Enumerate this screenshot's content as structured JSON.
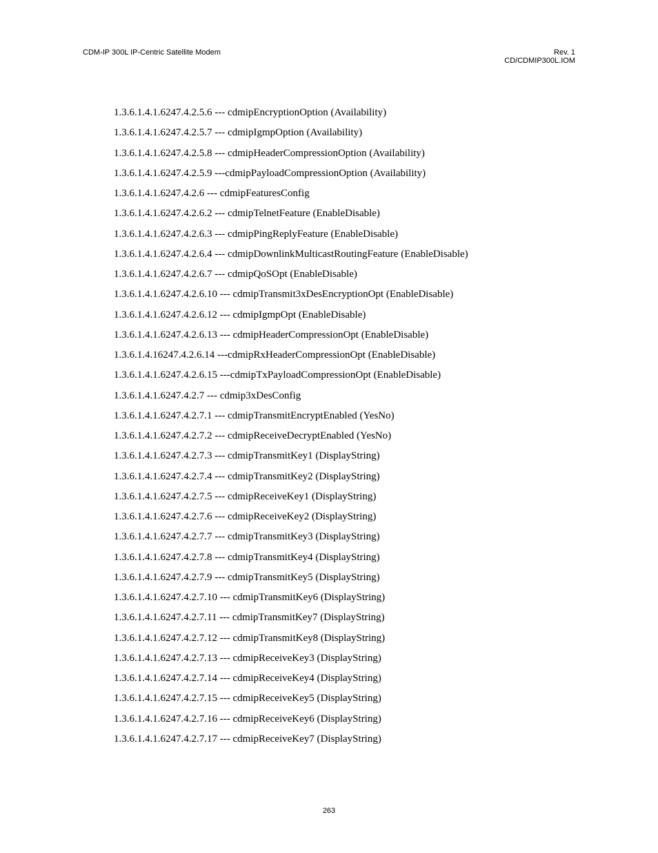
{
  "header": {
    "left": "CDM-IP 300L IP-Centric Satellite Modem",
    "right_line1": "Rev. 1",
    "right_line2": "CD/CDMIP300L.IOM"
  },
  "oid_entries": [
    "1.3.6.1.4.1.6247.4.2.5.6 --- cdmipEncryptionOption (Availability)",
    "1.3.6.1.4.1.6247.4.2.5.7 --- cdmipIgmpOption (Availability)",
    "1.3.6.1.4.1.6247.4.2.5.8 --- cdmipHeaderCompressionOption (Availability)",
    "1.3.6.1.4.1.6247.4.2.5.9 ---cdmipPayloadCompressionOption (Availability)",
    "1.3.6.1.4.1.6247.4.2.6 --- cdmipFeaturesConfig",
    "1.3.6.1.4.1.6247.4.2.6.2 --- cdmipTelnetFeature (EnableDisable)",
    "1.3.6.1.4.1.6247.4.2.6.3 --- cdmipPingReplyFeature (EnableDisable)",
    "1.3.6.1.4.1.6247.4.2.6.4 --- cdmipDownlinkMulticastRoutingFeature (EnableDisable)",
    "1.3.6.1.4.1.6247.4.2.6.7 --- cdmipQoSOpt (EnableDisable)",
    "1.3.6.1.4.1.6247.4.2.6.10 --- cdmipTransmit3xDesEncryptionOpt (EnableDisable)",
    "1.3.6.1.4.1.6247.4.2.6.12 --- cdmipIgmpOpt (EnableDisable)",
    "1.3.6.1.4.1.6247.4.2.6.13 --- cdmipHeaderCompressionOpt (EnableDisable)",
    "1.3.6.1.4.16247.4.2.6.14 ---cdmipRxHeaderCompressionOpt (EnableDisable)",
    "1.3.6.1.4.1.6247.4.2.6.15 ---cdmipTxPayloadCompressionOpt (EnableDisable)",
    "1.3.6.1.4.1.6247.4.2.7 --- cdmip3xDesConfig",
    "1.3.6.1.4.1.6247.4.2.7.1 --- cdmipTransmitEncryptEnabled (YesNo)",
    "1.3.6.1.4.1.6247.4.2.7.2 --- cdmipReceiveDecryptEnabled (YesNo)",
    "1.3.6.1.4.1.6247.4.2.7.3 --- cdmipTransmitKey1 (DisplayString)",
    "1.3.6.1.4.1.6247.4.2.7.4 --- cdmipTransmitKey2 (DisplayString)",
    "1.3.6.1.4.1.6247.4.2.7.5 --- cdmipReceiveKey1 (DisplayString)",
    "1.3.6.1.4.1.6247.4.2.7.6 --- cdmipReceiveKey2 (DisplayString)",
    "1.3.6.1.4.1.6247.4.2.7.7 --- cdmipTransmitKey3 (DisplayString)",
    "1.3.6.1.4.1.6247.4.2.7.8 --- cdmipTransmitKey4 (DisplayString)",
    "1.3.6.1.4.1.6247.4.2.7.9 --- cdmipTransmitKey5 (DisplayString)",
    "1.3.6.1.4.1.6247.4.2.7.10 --- cdmipTransmitKey6 (DisplayString)",
    "1.3.6.1.4.1.6247.4.2.7.11 --- cdmipTransmitKey7 (DisplayString)",
    "1.3.6.1.4.1.6247.4.2.7.12 --- cdmipTransmitKey8 (DisplayString)",
    "1.3.6.1.4.1.6247.4.2.7.13 --- cdmipReceiveKey3 (DisplayString)",
    "1.3.6.1.4.1.6247.4.2.7.14 --- cdmipReceiveKey4 (DisplayString)",
    "1.3.6.1.4.1.6247.4.2.7.15 --- cdmipReceiveKey5 (DisplayString)",
    "1.3.6.1.4.1.6247.4.2.7.16 --- cdmipReceiveKey6 (DisplayString)",
    "1.3.6.1.4.1.6247.4.2.7.17 --- cdmipReceiveKey7 (DisplayString)"
  ],
  "page_number": "263"
}
